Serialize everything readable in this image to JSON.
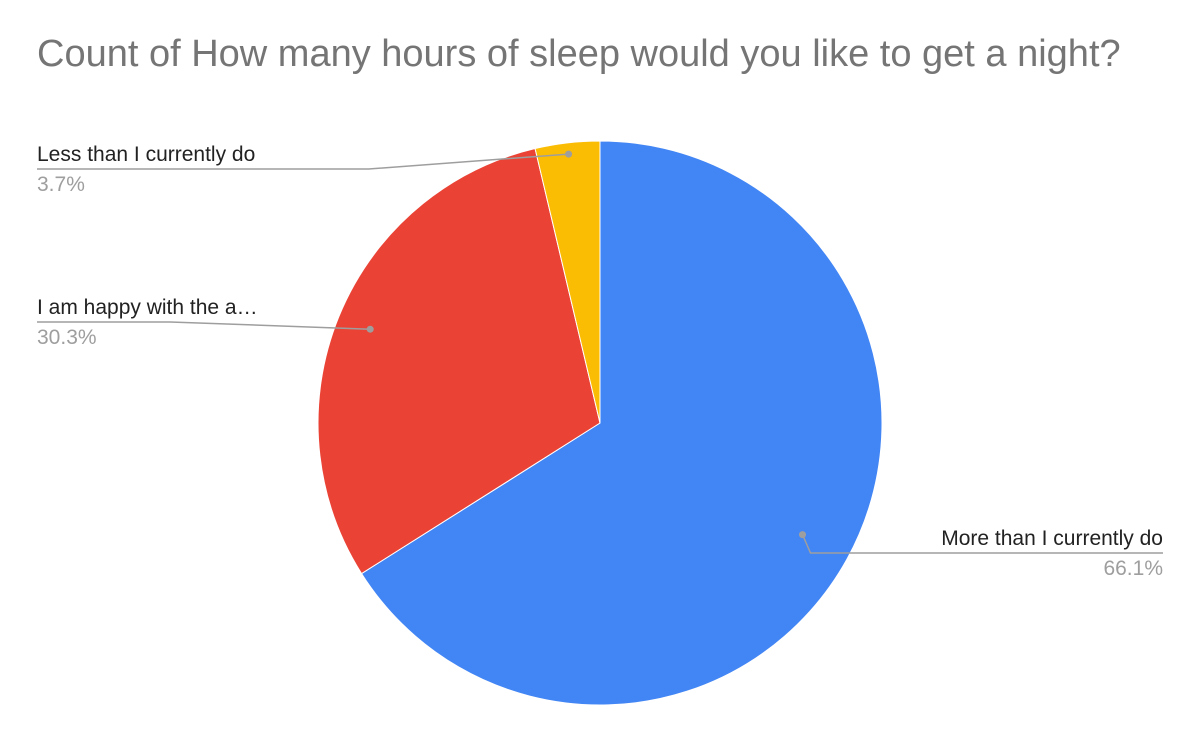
{
  "chart_data": {
    "type": "pie",
    "title": "Count of How many hours of sleep would you like to get a night?",
    "legend": "none",
    "slices": [
      {
        "label": "More than I currently do",
        "value": 66.1,
        "percent_label": "66.1%",
        "color": "#4285f4"
      },
      {
        "label": "I am happy with the a…",
        "value": 30.3,
        "percent_label": "30.3%",
        "color": "#ea4335"
      },
      {
        "label": "Less than I currently do",
        "value": 3.7,
        "percent_label": "3.7%",
        "color": "#fbbc04"
      }
    ]
  },
  "colors": {
    "title": "#757575",
    "label_text": "#222222",
    "percent_text": "#9e9e9e",
    "leader_line": "#9e9e9e"
  }
}
